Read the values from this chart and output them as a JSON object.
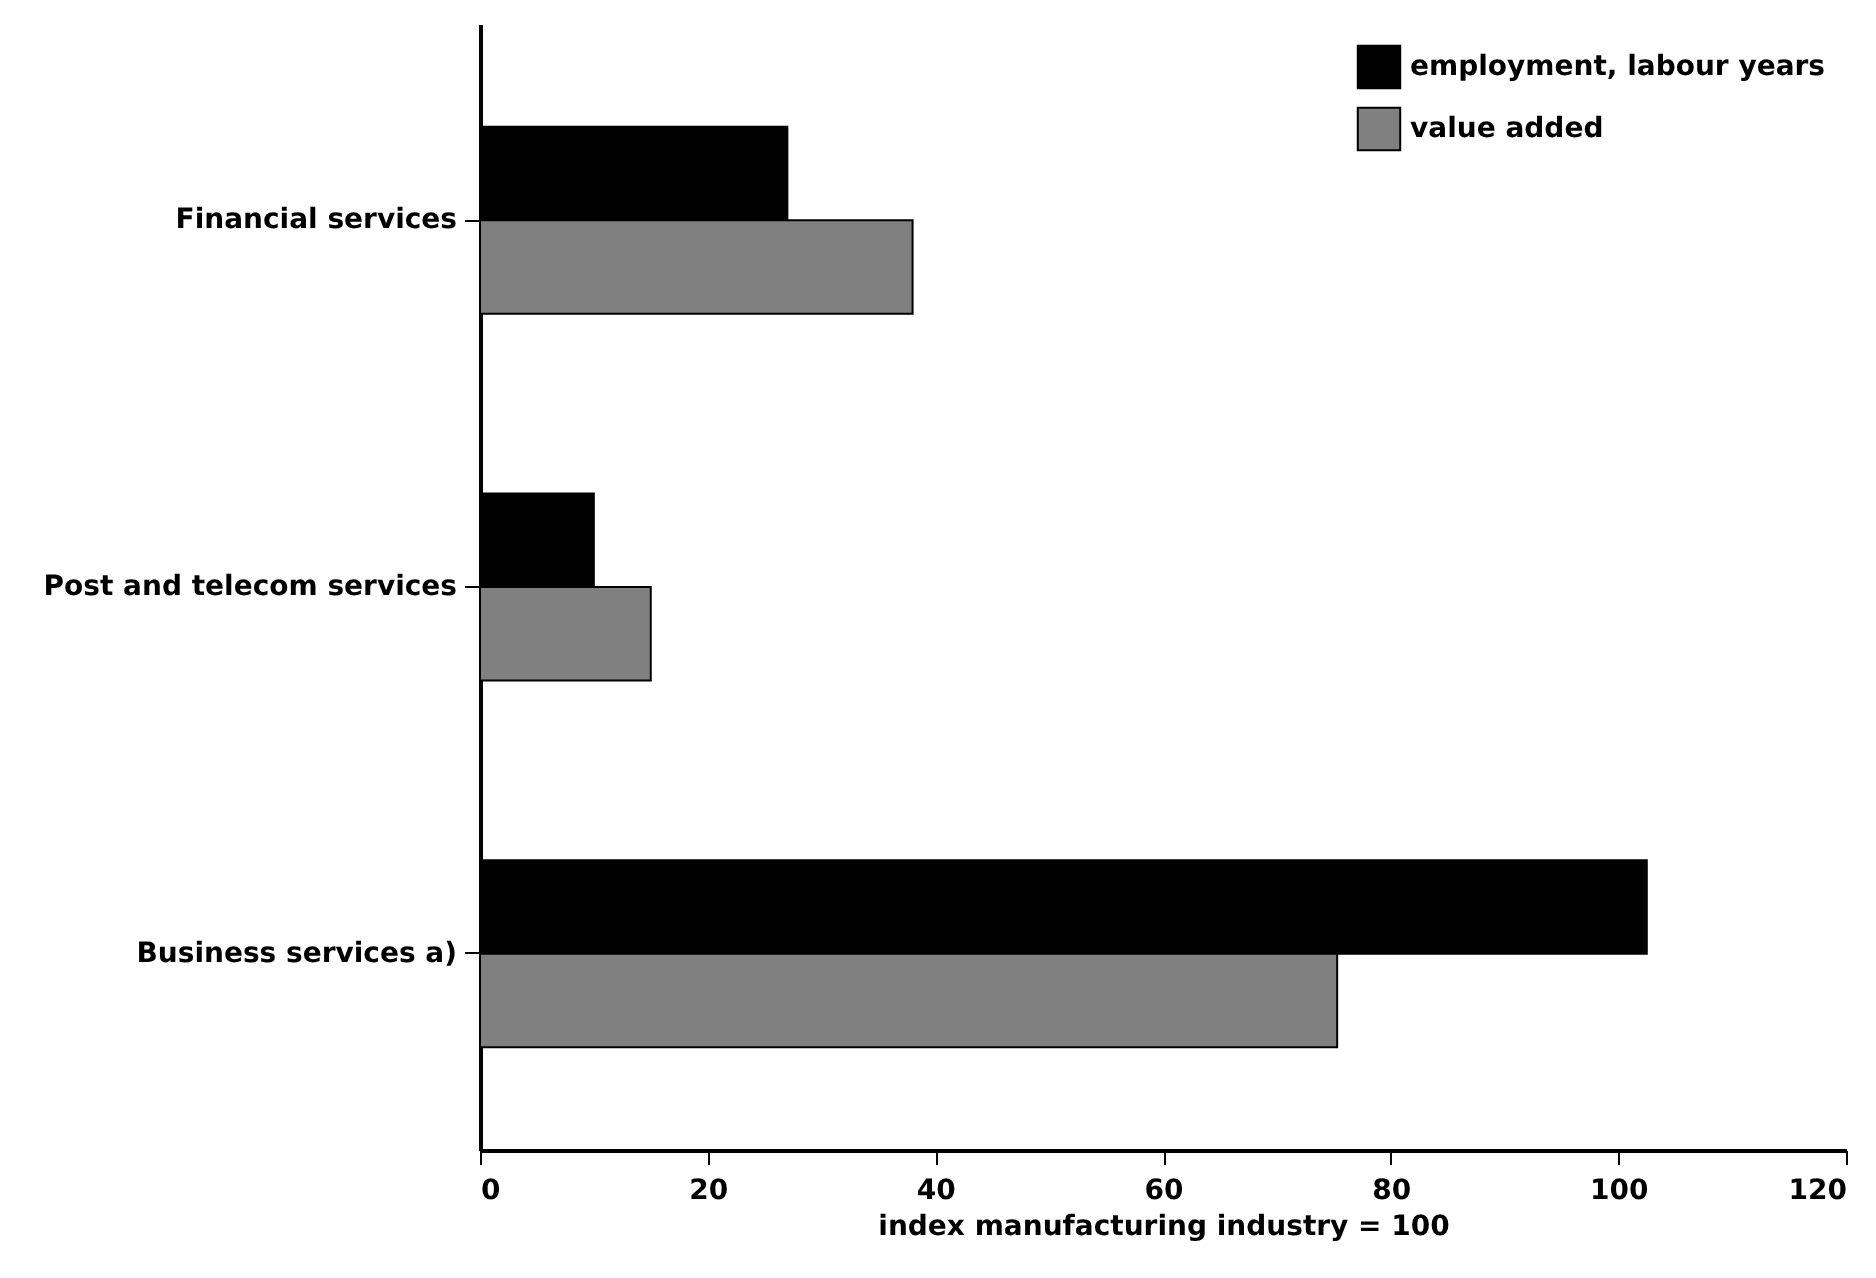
{
  "chart_data": {
    "type": "bar",
    "orientation": "horizontal",
    "xlabel": "index manufacturing industry = 100",
    "categories": [
      "Financial services",
      "Post and telecom services",
      "Business services a)"
    ],
    "series": [
      {
        "name": "employment, labour years",
        "color": "#000000",
        "values": [
          27,
          10,
          102.5
        ]
      },
      {
        "name": "value added",
        "color": "#808080",
        "values": [
          38,
          15,
          75.3
        ]
      }
    ],
    "xlim": [
      0,
      120
    ],
    "xticks": [
      0,
      20,
      40,
      60,
      80,
      100,
      120
    ],
    "grid": false,
    "legend": "top right"
  }
}
